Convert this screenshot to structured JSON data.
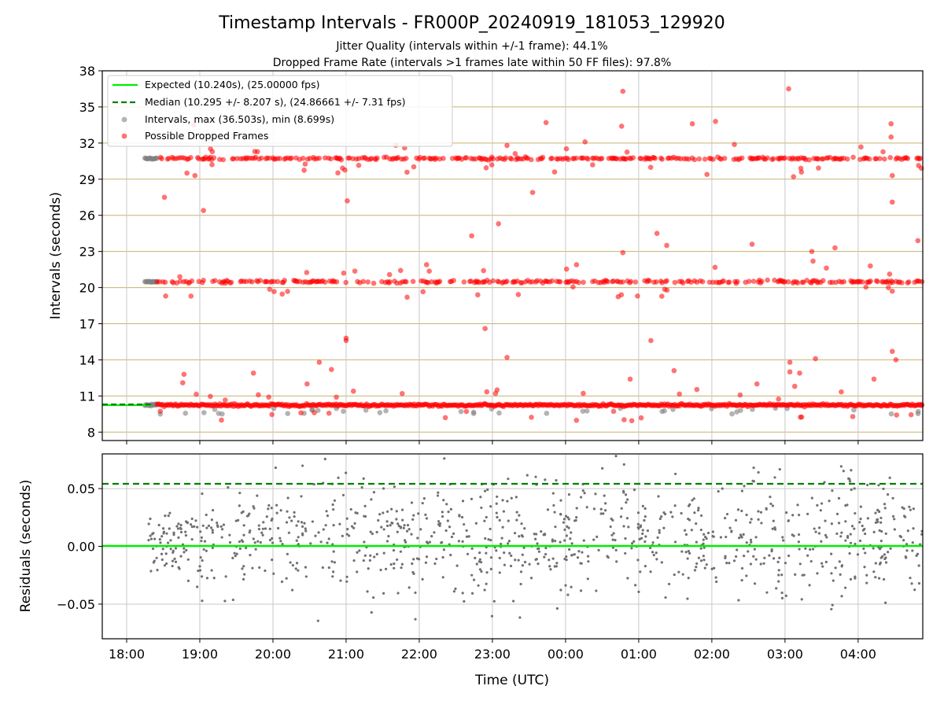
{
  "chart_data": [
    {
      "type": "scatter",
      "title": "Timestamp Intervals - FR000P_20240919_181053_129920",
      "subtitle_1": "Jitter Quality (intervals within +/-1 frame): 44.1%",
      "subtitle_2": "Dropped Frame Rate (intervals >1 frames late within 50 FF files): 97.8%",
      "ylabel": "Intervals (seconds)",
      "ylim": [
        7.3,
        38
      ],
      "yticks": [
        "8",
        "11",
        "14",
        "17",
        "20",
        "23",
        "26",
        "29",
        "32",
        "35",
        "38"
      ],
      "ytick_values": [
        8,
        11,
        14,
        17,
        20,
        23,
        26,
        29,
        32,
        35,
        38
      ],
      "grid": true,
      "legend_position": "top-left",
      "legend": [
        "Expected (10.240s), (25.00000 fps)",
        "Median (10.295 +/- 8.207 s), (24.86661 +/- 7.31 fps)",
        "Intervals, max (36.503s), min (8.699s)",
        "Possible Dropped Frames"
      ],
      "expected_interval": 10.24,
      "median_interval": 10.295,
      "series_levels_seconds": [
        10.24,
        20.48,
        30.72
      ],
      "outlier_points": [
        {
          "x": "18:31",
          "y": 27.5
        },
        {
          "x": "18:32",
          "y": 19.3
        },
        {
          "x": "18:46",
          "y": 12.1
        },
        {
          "x": "18:47",
          "y": 12.8
        },
        {
          "x": "18:55",
          "y": 33.5
        },
        {
          "x": "18:56",
          "y": 29.3
        },
        {
          "x": "19:03",
          "y": 26.4
        },
        {
          "x": "19:44",
          "y": 12.9
        },
        {
          "x": "19:48",
          "y": 11.1
        },
        {
          "x": "20:28",
          "y": 12.0
        },
        {
          "x": "20:38",
          "y": 13.8
        },
        {
          "x": "20:48",
          "y": 13.2
        },
        {
          "x": "20:52",
          "y": 10.9
        },
        {
          "x": "20:58",
          "y": 21.2
        },
        {
          "x": "21:00",
          "y": 15.8
        },
        {
          "x": "21:00",
          "y": 15.6
        },
        {
          "x": "21:01",
          "y": 27.2
        },
        {
          "x": "21:06",
          "y": 11.4
        },
        {
          "x": "21:46",
          "y": 11.2
        },
        {
          "x": "22:06",
          "y": 21.9
        },
        {
          "x": "22:43",
          "y": 24.3
        },
        {
          "x": "22:48",
          "y": 19.4
        },
        {
          "x": "22:54",
          "y": 16.6
        },
        {
          "x": "23:05",
          "y": 25.3
        },
        {
          "x": "23:12",
          "y": 14.2
        },
        {
          "x": "23:12",
          "y": 31.8
        },
        {
          "x": "23:33",
          "y": 27.9
        },
        {
          "x": "23:44",
          "y": 33.7
        },
        {
          "x": "23:51",
          "y": 29.6
        },
        {
          "x": "00:09",
          "y": 21.9
        },
        {
          "x": "00:16",
          "y": 32.1
        },
        {
          "x": "00:46",
          "y": 33.4
        },
        {
          "x": "00:47",
          "y": 36.3
        },
        {
          "x": "00:47",
          "y": 22.9
        },
        {
          "x": "00:53",
          "y": 12.4
        },
        {
          "x": "00:59",
          "y": 19.3
        },
        {
          "x": "01:10",
          "y": 15.6
        },
        {
          "x": "01:15",
          "y": 24.5
        },
        {
          "x": "01:23",
          "y": 23.5
        },
        {
          "x": "01:29",
          "y": 13.1
        },
        {
          "x": "01:44",
          "y": 33.6
        },
        {
          "x": "01:56",
          "y": 29.4
        },
        {
          "x": "02:03",
          "y": 33.8
        },
        {
          "x": "02:33",
          "y": 23.6
        },
        {
          "x": "02:37",
          "y": 12.0
        },
        {
          "x": "03:03",
          "y": 36.5
        },
        {
          "x": "03:04",
          "y": 13.8
        },
        {
          "x": "03:04",
          "y": 13.0
        },
        {
          "x": "03:07",
          "y": 29.2
        },
        {
          "x": "03:08",
          "y": 11.8
        },
        {
          "x": "03:12",
          "y": 12.9
        },
        {
          "x": "03:22",
          "y": 23.0
        },
        {
          "x": "03:23",
          "y": 22.2
        },
        {
          "x": "03:25",
          "y": 14.1
        },
        {
          "x": "03:41",
          "y": 23.3
        },
        {
          "x": "04:10",
          "y": 21.8
        },
        {
          "x": "04:13",
          "y": 12.4
        },
        {
          "x": "04:27",
          "y": 33.6
        },
        {
          "x": "04:27",
          "y": 32.5
        },
        {
          "x": "04:28",
          "y": 29.3
        },
        {
          "x": "04:28",
          "y": 27.1
        },
        {
          "x": "04:28",
          "y": 14.7
        },
        {
          "x": "04:28",
          "y": 19.7
        },
        {
          "x": "04:31",
          "y": 14.0
        },
        {
          "x": "04:49",
          "y": 23.9
        }
      ]
    },
    {
      "type": "scatter",
      "xlabel": "Time (UTC)",
      "ylabel": "Residuals (seconds)",
      "ylim": [
        -0.08,
        0.08
      ],
      "yticks": [
        "−0.05",
        "0.00",
        "0.05"
      ],
      "ytick_values": [
        -0.05,
        0.0,
        0.05
      ],
      "xticks": [
        "18:00",
        "19:00",
        "20:00",
        "21:00",
        "22:00",
        "23:00",
        "00:00",
        "01:00",
        "02:00",
        "03:00",
        "04:00"
      ],
      "xlim": [
        "17:40",
        "04:53"
      ],
      "expected_residual": 0.0,
      "median_residual": 0.055,
      "grid": true
    }
  ]
}
